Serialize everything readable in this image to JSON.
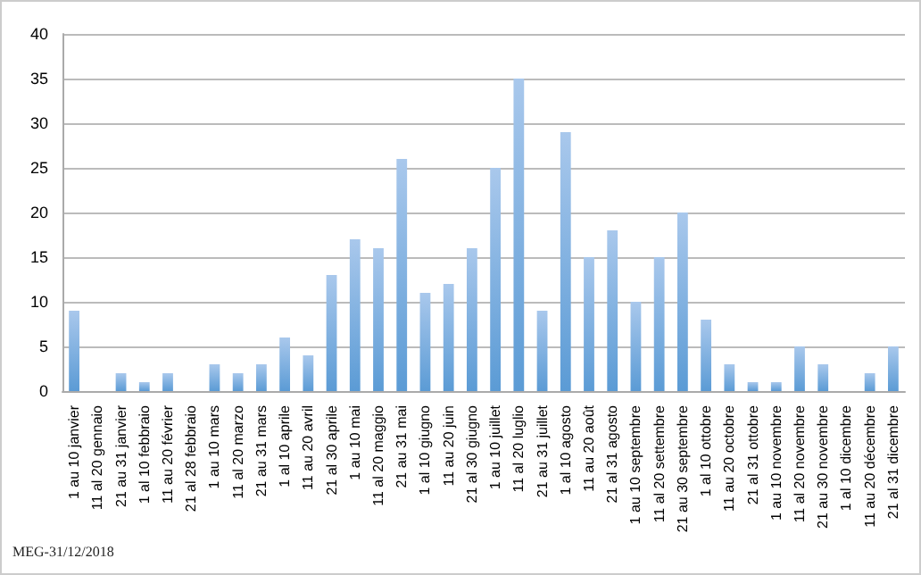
{
  "chart_data": {
    "type": "bar",
    "categories": [
      "1 au 10 janvier",
      "11 al 20 gennaio",
      "21 au 31 janvier",
      "1 al 10 febbraio",
      "11 au 20 février",
      "21 al 28 febbraio",
      "1 au 10 mars",
      "11 al 20 marzo",
      "21 au 31 mars",
      "1 al 10 aprile",
      "11 au 20 avril",
      "21 al 30 aprile",
      "1 au 10 mai",
      "11 al 20 maggio",
      "21 au 31 mai",
      "1 al 10 giugno",
      "11 au 20 juin",
      "21 al 30 giugno",
      "1 au 10 juillet",
      "11 al 20 luglio",
      "21 au 31 juillet",
      "1 al 10 agosto",
      "11 au 20 août",
      "21 al 31 agosto",
      "1 au 10 septembre",
      "11 al 20 settembre",
      "21 au 30 septembre",
      "1 al 10 ottobre",
      "11 au 20 octobre",
      "21 al 31 ottobre",
      "1 au 10 novembre",
      "11 al 20 novembre",
      "21 au 30 novembre",
      "1 al 10 dicembre",
      "11 au 20 décembre",
      "21 al 31 dicembre"
    ],
    "values": [
      9,
      0,
      2,
      1,
      2,
      0,
      3,
      2,
      3,
      6,
      4,
      13,
      17,
      16,
      26,
      11,
      12,
      16,
      25,
      35,
      9,
      29,
      15,
      18,
      10,
      15,
      20,
      8,
      3,
      1,
      1,
      5,
      3,
      0,
      2,
      5
    ],
    "color": "#5b9bd5",
    "ylim": [
      0,
      40
    ],
    "yticks": [
      0,
      5,
      10,
      15,
      20,
      25,
      30,
      35,
      40
    ],
    "grid": "y",
    "annotations": [
      "MEG-31/12/2018"
    ]
  }
}
